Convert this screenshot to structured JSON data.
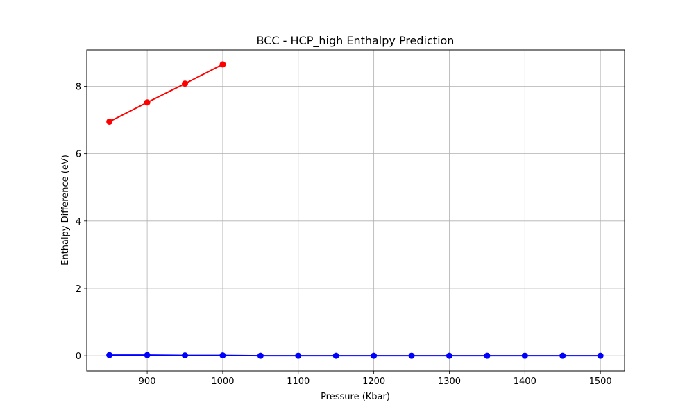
{
  "chart_data": {
    "type": "line",
    "title": "BCC - HCP_high Enthalpy Prediction",
    "xlabel": "Pressure (Kbar)",
    "ylabel": "Enthalpy Difference (eV)",
    "xlim": [
      820,
      1532
    ],
    "ylim": [
      -0.45,
      9.08
    ],
    "xticks": [
      900,
      1000,
      1100,
      1200,
      1300,
      1400,
      1500
    ],
    "yticks": [
      0,
      2,
      4,
      6,
      8
    ],
    "grid": true,
    "series": [
      {
        "color": "#ff0000",
        "x": [
          850,
          900,
          950,
          1000
        ],
        "y": [
          6.95,
          7.52,
          8.08,
          8.65
        ]
      },
      {
        "color": "#0000ff",
        "x": [
          850,
          900,
          950,
          1000,
          1050,
          1100,
          1150,
          1200,
          1250,
          1300,
          1350,
          1400,
          1450,
          1500
        ],
        "y": [
          0.02,
          0.02,
          0.01,
          0.01,
          0.0,
          0.0,
          0.0,
          0.0,
          0.0,
          0.0,
          0.0,
          0.0,
          0.0,
          0.0
        ]
      }
    ]
  }
}
